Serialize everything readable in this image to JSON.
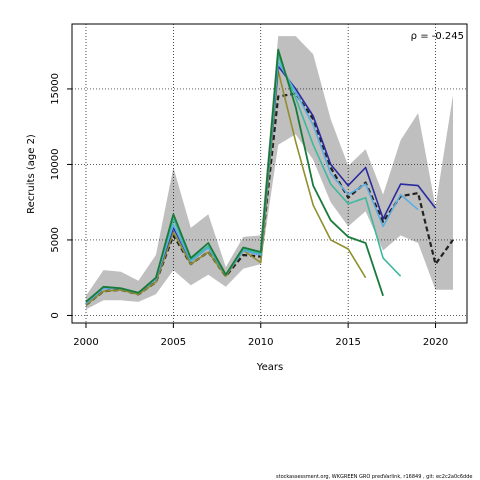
{
  "chart_data": {
    "type": "line",
    "xlabel": "Years",
    "ylabel": "Recruits (age 2)",
    "xlim": [
      1999.2,
      2021.8
    ],
    "ylim": [
      -500,
      19300
    ],
    "x_ticks": [
      2000,
      2005,
      2010,
      2015,
      2020
    ],
    "y_ticks": [
      0,
      5000,
      10000,
      15000
    ],
    "grid": "dotted",
    "annotation": "ρ = -0.245",
    "band": {
      "x": [
        2000,
        2001,
        2002,
        2003,
        2004,
        2005,
        2006,
        2007,
        2008,
        2009,
        2010,
        2011,
        2012,
        2013,
        2014,
        2015,
        2016,
        2017,
        2018,
        2019,
        2020,
        2021
      ],
      "upper": [
        1300,
        3000,
        2900,
        2300,
        4000,
        9800,
        5800,
        6700,
        3200,
        5200,
        5300,
        18500,
        18500,
        17300,
        13000,
        9900,
        11000,
        8000,
        11600,
        13400,
        7200,
        14600
      ],
      "lower": [
        400,
        1000,
        1000,
        900,
        1400,
        3000,
        2000,
        2700,
        1900,
        3100,
        3400,
        11300,
        12000,
        10300,
        7500,
        5900,
        6900,
        4300,
        5300,
        4800,
        1700,
        1700
      ]
    },
    "series": [
      {
        "color": "#222222",
        "dashed": true,
        "width": 2.2,
        "x": [
          2000,
          2001,
          2002,
          2003,
          2004,
          2005,
          2006,
          2007,
          2008,
          2009,
          2010,
          2011,
          2012,
          2013,
          2014,
          2015,
          2016,
          2017,
          2018,
          2019,
          2020,
          2021
        ],
        "values": [
          700,
          1600,
          1700,
          1400,
          2200,
          5300,
          3400,
          4200,
          2600,
          4000,
          3900,
          14500,
          14700,
          13000,
          9800,
          7800,
          8800,
          6200,
          7900,
          8100,
          3400,
          5000
        ]
      },
      {
        "color": "#8f8f2f",
        "dashed": false,
        "width": 1.6,
        "x": [
          2000,
          2001,
          2002,
          2003,
          2004,
          2005,
          2006,
          2007,
          2008,
          2009,
          2010,
          2011,
          2012,
          2013,
          2014,
          2015,
          2016
        ],
        "values": [
          700,
          1600,
          1700,
          1400,
          2200,
          5500,
          3400,
          4200,
          2600,
          4300,
          3500,
          16200,
          11500,
          7300,
          5000,
          4400,
          2500
        ]
      },
      {
        "color": "#2a2aa0",
        "dashed": false,
        "width": 1.6,
        "x": [
          2000,
          2001,
          2002,
          2003,
          2004,
          2005,
          2006,
          2007,
          2008,
          2009,
          2010,
          2011,
          2012,
          2013,
          2014,
          2015,
          2016,
          2017,
          2018,
          2019,
          2020
        ],
        "values": [
          800,
          1800,
          1800,
          1500,
          2400,
          5800,
          3600,
          4500,
          2700,
          4300,
          4000,
          16500,
          15000,
          13200,
          10000,
          8600,
          9800,
          6400,
          8700,
          8600,
          7100
        ]
      },
      {
        "color": "#5aaee0",
        "dashed": false,
        "width": 1.6,
        "x": [
          2000,
          2001,
          2002,
          2003,
          2004,
          2005,
          2006,
          2007,
          2008,
          2009,
          2010,
          2011,
          2012,
          2013,
          2014,
          2015,
          2016,
          2017,
          2018,
          2019
        ],
        "values": [
          800,
          1800,
          1800,
          1500,
          2400,
          6000,
          3600,
          4500,
          2700,
          4300,
          4000,
          16800,
          14800,
          12600,
          9400,
          8000,
          8700,
          5900,
          8000,
          7000
        ]
      },
      {
        "color": "#3fb8a0",
        "dashed": false,
        "width": 1.6,
        "x": [
          2000,
          2001,
          2002,
          2003,
          2004,
          2005,
          2006,
          2007,
          2008,
          2009,
          2010,
          2011,
          2012,
          2013,
          2014,
          2015,
          2016,
          2017,
          2018
        ],
        "values": [
          900,
          1900,
          1800,
          1500,
          2500,
          6400,
          3700,
          4600,
          2700,
          4400,
          4100,
          17200,
          14400,
          11300,
          8700,
          7400,
          7800,
          3800,
          2600
        ]
      },
      {
        "color": "#1a7a3a",
        "dashed": false,
        "width": 1.8,
        "x": [
          2000,
          2001,
          2002,
          2003,
          2004,
          2005,
          2006,
          2007,
          2008,
          2009,
          2010,
          2011,
          2012,
          2013,
          2014,
          2015,
          2016,
          2017
        ],
        "values": [
          900,
          1900,
          1800,
          1500,
          2500,
          6700,
          3800,
          4800,
          2700,
          4500,
          4200,
          17600,
          13800,
          8600,
          6300,
          5200,
          4800,
          1300
        ]
      }
    ]
  },
  "footer": "stockassessment.org,  WKGREEN  GRO  predVarlink,  r16849 ,  git:  ec2c2a0c6dde"
}
